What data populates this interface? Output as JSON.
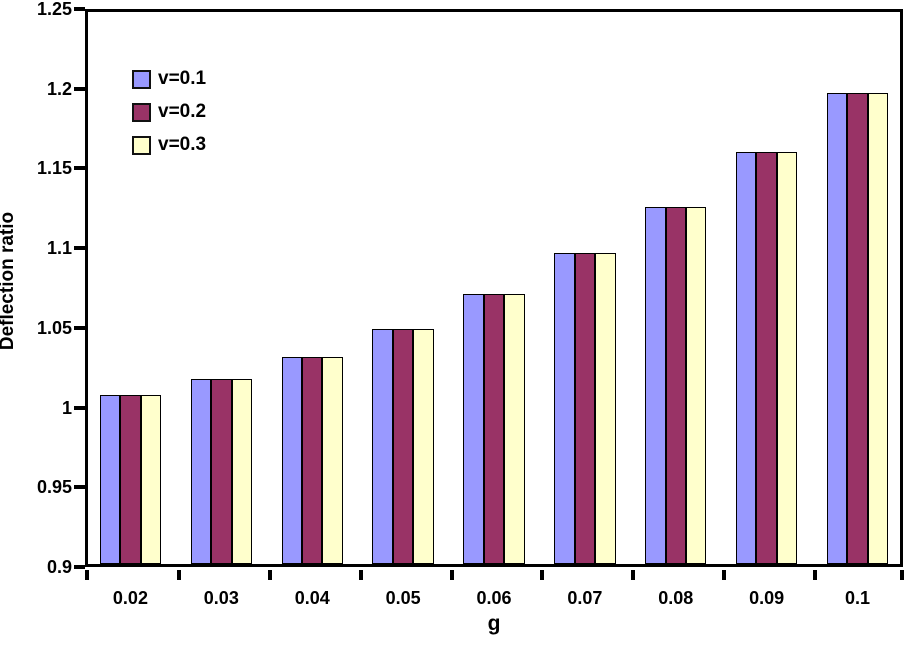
{
  "chart_data": {
    "type": "bar",
    "title": "",
    "xlabel": "g",
    "ylabel": "Deflection ratio",
    "ylim": [
      0.9,
      1.25
    ],
    "ytick_labels": [
      "0.9",
      "0.95",
      "1",
      "1.05",
      "1.1",
      "1.15",
      "1.2",
      "1.25"
    ],
    "ytick_values": [
      0.9,
      0.95,
      1.0,
      1.05,
      1.1,
      1.15,
      1.2,
      1.25
    ],
    "grid": "off",
    "legend_position": "upper-left-inside",
    "categories": [
      "0.02",
      "0.03",
      "0.04",
      "0.05",
      "0.06",
      "0.07",
      "0.08",
      "0.09",
      "0.1"
    ],
    "series": [
      {
        "name": "v=0.1",
        "color": "#9999FF",
        "values": [
          1.008,
          1.018,
          1.032,
          1.049,
          1.071,
          1.097,
          1.126,
          1.16,
          1.197
        ]
      },
      {
        "name": "v=0.2",
        "color": "#993366",
        "values": [
          1.008,
          1.018,
          1.032,
          1.049,
          1.071,
          1.097,
          1.126,
          1.16,
          1.197
        ]
      },
      {
        "name": "v=0.3",
        "color": "#FFFFCC",
        "values": [
          1.008,
          1.018,
          1.032,
          1.049,
          1.071,
          1.097,
          1.126,
          1.16,
          1.197
        ]
      }
    ],
    "colors": {
      "bar_border": "#000000",
      "axis": "#000000",
      "background": "#ffffff"
    }
  }
}
